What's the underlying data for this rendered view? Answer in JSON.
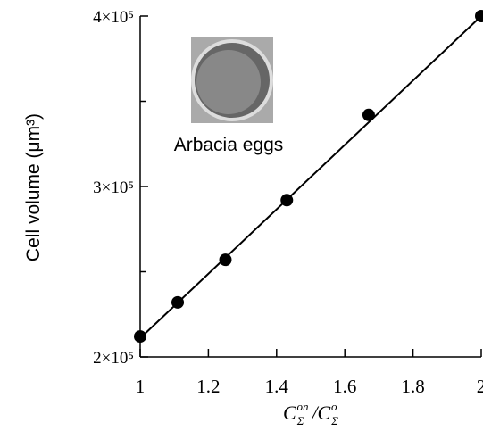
{
  "chart_data": {
    "type": "scatter",
    "xlabel": {
      "base": "C",
      "sub": "Σ",
      "sup": "on",
      "sep": "/C",
      "sub2": "Σ",
      "sup2": "o"
    },
    "ylabel": "Cell volume (μm³)",
    "annotation": "Arbacia eggs",
    "x": [
      1,
      1.11,
      1.25,
      1.43,
      1.67,
      2
    ],
    "values": [
      212000,
      232000,
      257000,
      292000,
      342000,
      400000
    ],
    "color": "#000000",
    "fit": {
      "x": [
        1,
        2
      ],
      "values": [
        211000,
        400000
      ]
    },
    "xlim": [
      1,
      2
    ],
    "xticks": [
      1,
      1.2,
      1.4,
      1.6,
      1.8,
      2
    ],
    "ylim": [
      200000,
      400000
    ],
    "yticks": [
      {
        "value": 200000,
        "label": "2×10⁵"
      },
      {
        "value": 300000,
        "label": "3×10⁵"
      },
      {
        "value": 400000,
        "label": "4×10⁵"
      }
    ],
    "yminorticks": [
      250000,
      350000
    ]
  }
}
